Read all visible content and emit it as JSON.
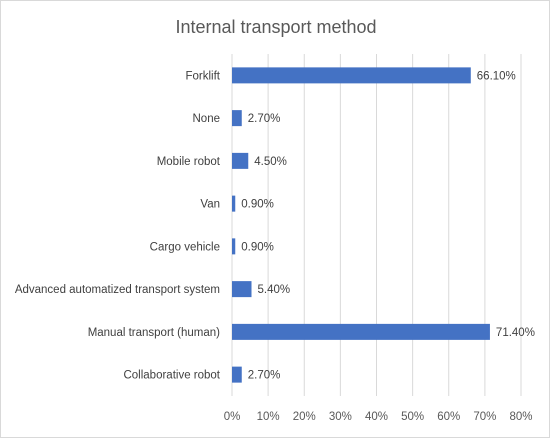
{
  "chart_data": {
    "type": "bar",
    "orientation": "horizontal",
    "title": "Internal transport method",
    "categories": [
      "Forklift",
      "None",
      "Mobile robot",
      "Van",
      "Cargo vehicle",
      "Advanced automatized transport system",
      "Manual transport (human)",
      "Collaborative robot"
    ],
    "values": [
      66.1,
      2.7,
      4.5,
      0.9,
      0.9,
      5.4,
      71.4,
      2.7
    ],
    "value_labels": [
      "66.10%",
      "2.70%",
      "4.50%",
      "0.90%",
      "0.90%",
      "5.40%",
      "71.40%",
      "2.70%"
    ],
    "xlim": [
      0,
      80
    ],
    "xticks": [
      "0%",
      "10%",
      "20%",
      "30%",
      "40%",
      "50%",
      "60%",
      "70%",
      "80%"
    ],
    "grid": true,
    "bar_color": "#4472c4"
  }
}
